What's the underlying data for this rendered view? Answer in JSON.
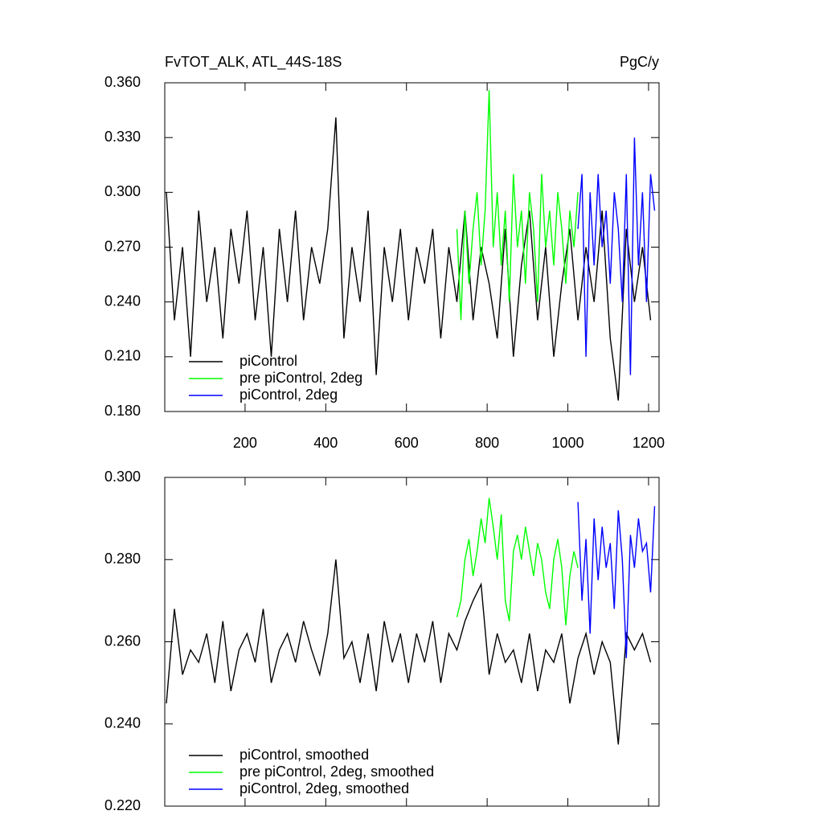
{
  "chart_data": [
    {
      "type": "line",
      "title": "FvTOT_ALK, ATL_44S-18S",
      "units": "PgC/y",
      "xlim": [
        1,
        1226
      ],
      "xticks": [
        200,
        400,
        600,
        800,
        1000,
        1200
      ],
      "ylim": [
        0.18,
        0.36
      ],
      "yticks": [
        {
          "value": 0.18,
          "label": "0.180"
        },
        {
          "value": 0.21,
          "label": "0.210"
        },
        {
          "value": 0.24,
          "label": "0.240"
        },
        {
          "value": 0.27,
          "label": "0.270"
        },
        {
          "value": 0.3,
          "label": "0.300"
        },
        {
          "value": 0.33,
          "label": "0.330"
        },
        {
          "value": 0.36,
          "label": "0.360"
        }
      ],
      "series": [
        {
          "name": "piControl",
          "color": "#000000",
          "x": [
            5,
            25,
            45,
            65,
            85,
            105,
            125,
            145,
            165,
            185,
            205,
            225,
            245,
            265,
            285,
            305,
            325,
            345,
            365,
            385,
            405,
            425,
            445,
            465,
            485,
            505,
            525,
            545,
            565,
            585,
            605,
            625,
            645,
            665,
            685,
            705,
            725,
            745,
            765,
            785,
            805,
            825,
            845,
            865,
            885,
            905,
            925,
            945,
            965,
            985,
            1005,
            1025,
            1045,
            1065,
            1085,
            1105,
            1125,
            1145,
            1165,
            1185,
            1205
          ],
          "values": [
            0.3,
            0.23,
            0.27,
            0.21,
            0.29,
            0.24,
            0.27,
            0.22,
            0.28,
            0.25,
            0.29,
            0.23,
            0.27,
            0.21,
            0.28,
            0.24,
            0.29,
            0.23,
            0.27,
            0.25,
            0.28,
            0.341,
            0.22,
            0.27,
            0.24,
            0.29,
            0.2,
            0.27,
            0.24,
            0.28,
            0.23,
            0.27,
            0.25,
            0.28,
            0.22,
            0.27,
            0.24,
            0.29,
            0.23,
            0.27,
            0.25,
            0.22,
            0.28,
            0.21,
            0.26,
            0.29,
            0.23,
            0.27,
            0.21,
            0.25,
            0.28,
            0.23,
            0.27,
            0.24,
            0.29,
            0.22,
            0.186,
            0.28,
            0.24,
            0.27,
            0.23
          ]
        },
        {
          "name": "pre piControl, 2deg",
          "color": "#00ff00",
          "x": [
            725,
            735,
            745,
            755,
            765,
            775,
            785,
            795,
            805,
            815,
            825,
            835,
            845,
            855,
            865,
            875,
            885,
            895,
            905,
            915,
            925,
            935,
            945,
            955,
            965,
            975,
            985,
            995,
            1005,
            1015,
            1025
          ],
          "values": [
            0.28,
            0.23,
            0.29,
            0.25,
            0.28,
            0.3,
            0.26,
            0.29,
            0.356,
            0.27,
            0.3,
            0.26,
            0.29,
            0.24,
            0.31,
            0.27,
            0.29,
            0.25,
            0.3,
            0.28,
            0.24,
            0.31,
            0.27,
            0.29,
            0.26,
            0.3,
            0.28,
            0.25,
            0.29,
            0.27,
            0.3
          ]
        },
        {
          "name": "piControl, 2deg",
          "color": "#0000ff",
          "x": [
            1025,
            1035,
            1045,
            1055,
            1065,
            1075,
            1085,
            1095,
            1105,
            1115,
            1125,
            1135,
            1145,
            1155,
            1165,
            1175,
            1185,
            1195,
            1205,
            1215
          ],
          "values": [
            0.28,
            0.31,
            0.21,
            0.3,
            0.26,
            0.31,
            0.27,
            0.29,
            0.25,
            0.3,
            0.28,
            0.24,
            0.31,
            0.2,
            0.33,
            0.26,
            0.3,
            0.24,
            0.31,
            0.29
          ]
        }
      ]
    },
    {
      "type": "line",
      "xlim": [
        1,
        1226
      ],
      "xticks": [
        200,
        400,
        600,
        800,
        1000,
        1200
      ],
      "ylim": [
        0.22,
        0.3
      ],
      "yticks": [
        {
          "value": 0.22,
          "label": "0.220"
        },
        {
          "value": 0.24,
          "label": "0.240"
        },
        {
          "value": 0.26,
          "label": "0.260"
        },
        {
          "value": 0.28,
          "label": "0.280"
        },
        {
          "value": 0.3,
          "label": "0.300"
        }
      ],
      "series": [
        {
          "name": "piControl, smoothed",
          "color": "#000000",
          "x": [
            5,
            25,
            45,
            65,
            85,
            105,
            125,
            145,
            165,
            185,
            205,
            225,
            245,
            265,
            285,
            305,
            325,
            345,
            365,
            385,
            405,
            425,
            445,
            465,
            485,
            505,
            525,
            545,
            565,
            585,
            605,
            625,
            645,
            665,
            685,
            705,
            725,
            745,
            765,
            785,
            805,
            825,
            845,
            865,
            885,
            905,
            925,
            945,
            965,
            985,
            1005,
            1025,
            1045,
            1065,
            1085,
            1105,
            1125,
            1145,
            1165,
            1185,
            1205
          ],
          "values": [
            0.245,
            0.268,
            0.252,
            0.258,
            0.255,
            0.262,
            0.25,
            0.265,
            0.248,
            0.258,
            0.262,
            0.255,
            0.268,
            0.25,
            0.258,
            0.262,
            0.255,
            0.265,
            0.258,
            0.252,
            0.262,
            0.28,
            0.256,
            0.26,
            0.25,
            0.262,
            0.248,
            0.265,
            0.255,
            0.262,
            0.25,
            0.262,
            0.255,
            0.265,
            0.25,
            0.262,
            0.258,
            0.265,
            0.27,
            0.274,
            0.252,
            0.262,
            0.255,
            0.258,
            0.25,
            0.262,
            0.248,
            0.258,
            0.255,
            0.262,
            0.245,
            0.256,
            0.262,
            0.252,
            0.26,
            0.255,
            0.235,
            0.262,
            0.258,
            0.262,
            0.255
          ]
        },
        {
          "name": "pre piControl, 2deg, smoothed",
          "color": "#00ff00",
          "x": [
            725,
            735,
            745,
            755,
            765,
            775,
            785,
            795,
            805,
            815,
            825,
            835,
            845,
            855,
            865,
            875,
            885,
            895,
            905,
            915,
            925,
            935,
            945,
            955,
            965,
            975,
            985,
            995,
            1005,
            1015,
            1025
          ],
          "values": [
            0.266,
            0.27,
            0.28,
            0.285,
            0.276,
            0.282,
            0.29,
            0.284,
            0.295,
            0.288,
            0.28,
            0.291,
            0.27,
            0.265,
            0.282,
            0.286,
            0.28,
            0.288,
            0.282,
            0.276,
            0.284,
            0.28,
            0.272,
            0.268,
            0.28,
            0.285,
            0.278,
            0.264,
            0.276,
            0.282,
            0.278
          ]
        },
        {
          "name": "piControl, 2deg, smoothed",
          "color": "#0000ff",
          "x": [
            1025,
            1035,
            1045,
            1055,
            1065,
            1075,
            1085,
            1095,
            1105,
            1115,
            1125,
            1135,
            1145,
            1155,
            1165,
            1175,
            1185,
            1195,
            1205,
            1215
          ],
          "values": [
            0.294,
            0.27,
            0.285,
            0.262,
            0.29,
            0.275,
            0.288,
            0.278,
            0.284,
            0.268,
            0.292,
            0.28,
            0.256,
            0.286,
            0.278,
            0.29,
            0.282,
            0.284,
            0.272,
            0.293
          ]
        }
      ]
    }
  ]
}
